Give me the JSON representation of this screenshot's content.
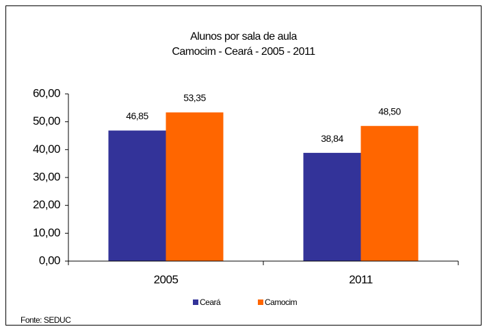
{
  "chart_data": {
    "type": "bar",
    "title": "Alunos por sala de aula",
    "subtitle": "Camocim - Ceará - 2005 - 2011",
    "categories": [
      "2005",
      "2011"
    ],
    "series": [
      {
        "name": "Ceará",
        "color": "#333399",
        "values": [
          46.85,
          38.84
        ],
        "value_labels": [
          "46,85",
          "38,84"
        ]
      },
      {
        "name": "Camocim",
        "color": "#ff6600",
        "values": [
          53.35,
          48.5
        ],
        "value_labels": [
          "53,35",
          "48,50"
        ]
      }
    ],
    "ylim": [
      0,
      60
    ],
    "yticks": [
      {
        "value": 0,
        "label": "0,00"
      },
      {
        "value": 10,
        "label": "10,00"
      },
      {
        "value": 20,
        "label": "20,00"
      },
      {
        "value": 30,
        "label": "30,00"
      },
      {
        "value": 40,
        "label": "40,00"
      },
      {
        "value": 50,
        "label": "50,00"
      },
      {
        "value": 60,
        "label": "60,00"
      }
    ],
    "legend": "bottom",
    "note": "Fonte: SEDUC"
  }
}
